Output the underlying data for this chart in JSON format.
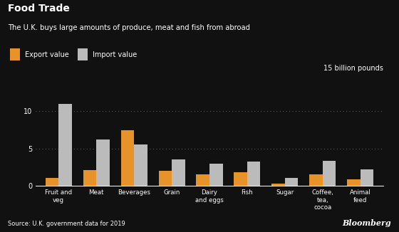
{
  "title": "Food Trade",
  "subtitle": "The U.K. buys large amounts of produce, meat and fish from abroad",
  "legend_export": "Export value",
  "legend_import": "Import value",
  "y_label": "15 billion pounds",
  "source": "Source: U.K. government data for 2019",
  "bloomberg": "Bloomberg",
  "categories": [
    "Fruit and\nveg",
    "Meat",
    "Beverages",
    "Grain",
    "Dairy\nand eggs",
    "Fish",
    "Sugar",
    "Coffee,\ntea,\ncocoa",
    "Animal\nfeed"
  ],
  "export_values": [
    1.0,
    2.1,
    7.5,
    2.0,
    1.5,
    1.8,
    0.3,
    1.5,
    0.8
  ],
  "import_values": [
    11.0,
    6.2,
    5.5,
    3.5,
    3.0,
    3.2,
    1.0,
    3.3,
    2.2
  ],
  "export_color": "#E8922A",
  "import_color": "#BBBBBB",
  "background_color": "#111111",
  "text_color": "#FFFFFF",
  "grid_color": "#555555",
  "ylim": [
    0,
    15
  ],
  "yticks": [
    0,
    5,
    10
  ],
  "bar_width": 0.35
}
